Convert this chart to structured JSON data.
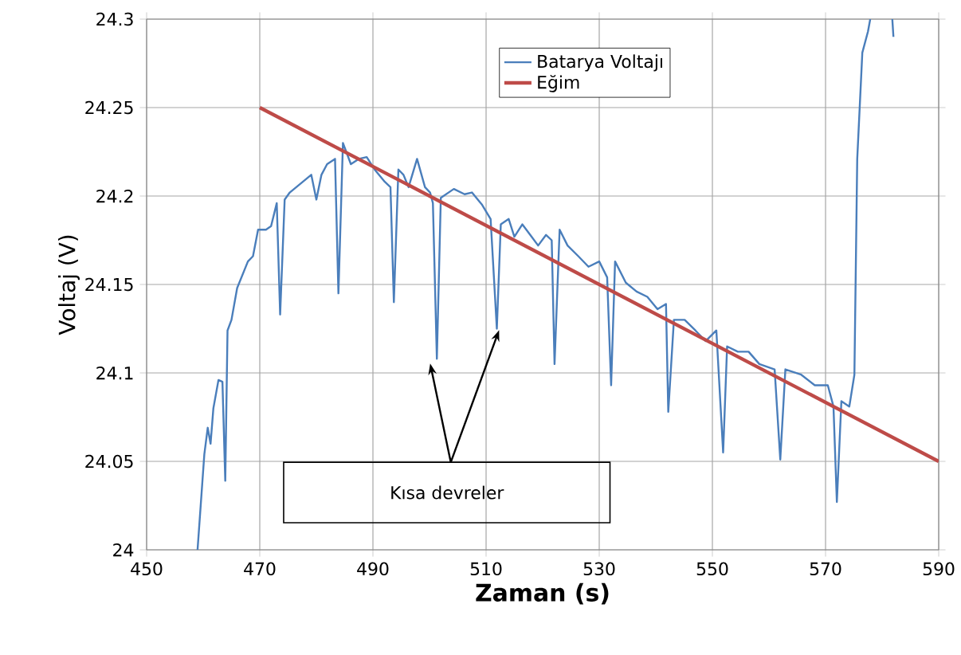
{
  "chart_data": {
    "type": "line",
    "xlabel": "Zaman (s)",
    "ylabel": "Voltaj (V)",
    "xlim": [
      450,
      590
    ],
    "xticks": [
      450,
      470,
      490,
      510,
      530,
      550,
      570,
      590
    ],
    "ylim": [
      24,
      24.3
    ],
    "yticks": [
      24,
      24.05,
      24.1,
      24.15,
      24.2,
      24.25,
      24.3
    ],
    "grid": true,
    "legend": "top right",
    "marker": "none",
    "line_style": "solid",
    "annotations": [
      "Kısa devreler"
    ],
    "series": [
      {
        "name": "Batarya Voltajı",
        "color": "#4a7ebb",
        "x": [
          459.0,
          460.2,
          460.8,
          461.3,
          461.8,
          462.7,
          463.4,
          463.9,
          464.3,
          465.0,
          466.0,
          467.9,
          468.8,
          469.7,
          471.1,
          472.0,
          473.0,
          473.6,
          474.4,
          475.3,
          477.2,
          479.1,
          480.0,
          480.9,
          481.9,
          483.3,
          483.9,
          484.7,
          486.1,
          487.5,
          488.9,
          490.3,
          492.1,
          493.1,
          493.7,
          494.5,
          495.4,
          496.3,
          497.8,
          499.2,
          500.1,
          500.6,
          501.3,
          502.0,
          504.3,
          506.2,
          507.5,
          509.3,
          510.8,
          511.9,
          512.6,
          514.0,
          515.0,
          516.4,
          517.8,
          519.2,
          520.6,
          521.6,
          522.1,
          523.0,
          524.4,
          526.3,
          528.1,
          530.0,
          531.4,
          532.1,
          532.8,
          534.7,
          536.6,
          538.5,
          540.3,
          541.8,
          542.2,
          543.2,
          545.1,
          547.0,
          548.8,
          550.7,
          551.9,
          552.6,
          554.5,
          556.4,
          558.3,
          561.0,
          562.0,
          562.9,
          565.7,
          568.1,
          570.4,
          571.4,
          572.0,
          572.8,
          574.2,
          575.1,
          575.6,
          576.5,
          577.5,
          577.9,
          579.8,
          581.8,
          582.0
        ],
        "values": [
          24.0,
          24.054,
          24.069,
          24.06,
          24.08,
          24.096,
          24.095,
          24.039,
          24.124,
          24.13,
          24.148,
          24.163,
          24.166,
          24.181,
          24.181,
          24.183,
          24.196,
          24.133,
          24.198,
          24.202,
          24.207,
          24.212,
          24.198,
          24.212,
          24.218,
          24.221,
          24.145,
          24.23,
          24.218,
          24.221,
          24.222,
          24.215,
          24.208,
          24.205,
          24.14,
          24.215,
          24.212,
          24.205,
          24.221,
          24.205,
          24.202,
          24.196,
          24.108,
          24.199,
          24.204,
          24.201,
          24.202,
          24.195,
          24.187,
          24.125,
          24.184,
          24.187,
          24.177,
          24.184,
          24.178,
          24.172,
          24.178,
          24.175,
          24.105,
          24.181,
          24.172,
          24.166,
          24.16,
          24.163,
          24.154,
          24.093,
          24.163,
          24.151,
          24.146,
          24.143,
          24.136,
          24.139,
          24.078,
          24.13,
          24.13,
          24.124,
          24.118,
          24.124,
          24.055,
          24.115,
          24.112,
          24.112,
          24.105,
          24.102,
          24.051,
          24.102,
          24.099,
          24.093,
          24.093,
          24.081,
          24.027,
          24.084,
          24.081,
          24.099,
          24.221,
          24.281,
          24.293,
          24.3,
          null,
          24.3,
          24.29
        ]
      },
      {
        "name": "Eğim",
        "color": "#be4b48",
        "x": [
          470,
          590
        ],
        "values": [
          24.25,
          24.05
        ]
      }
    ]
  }
}
